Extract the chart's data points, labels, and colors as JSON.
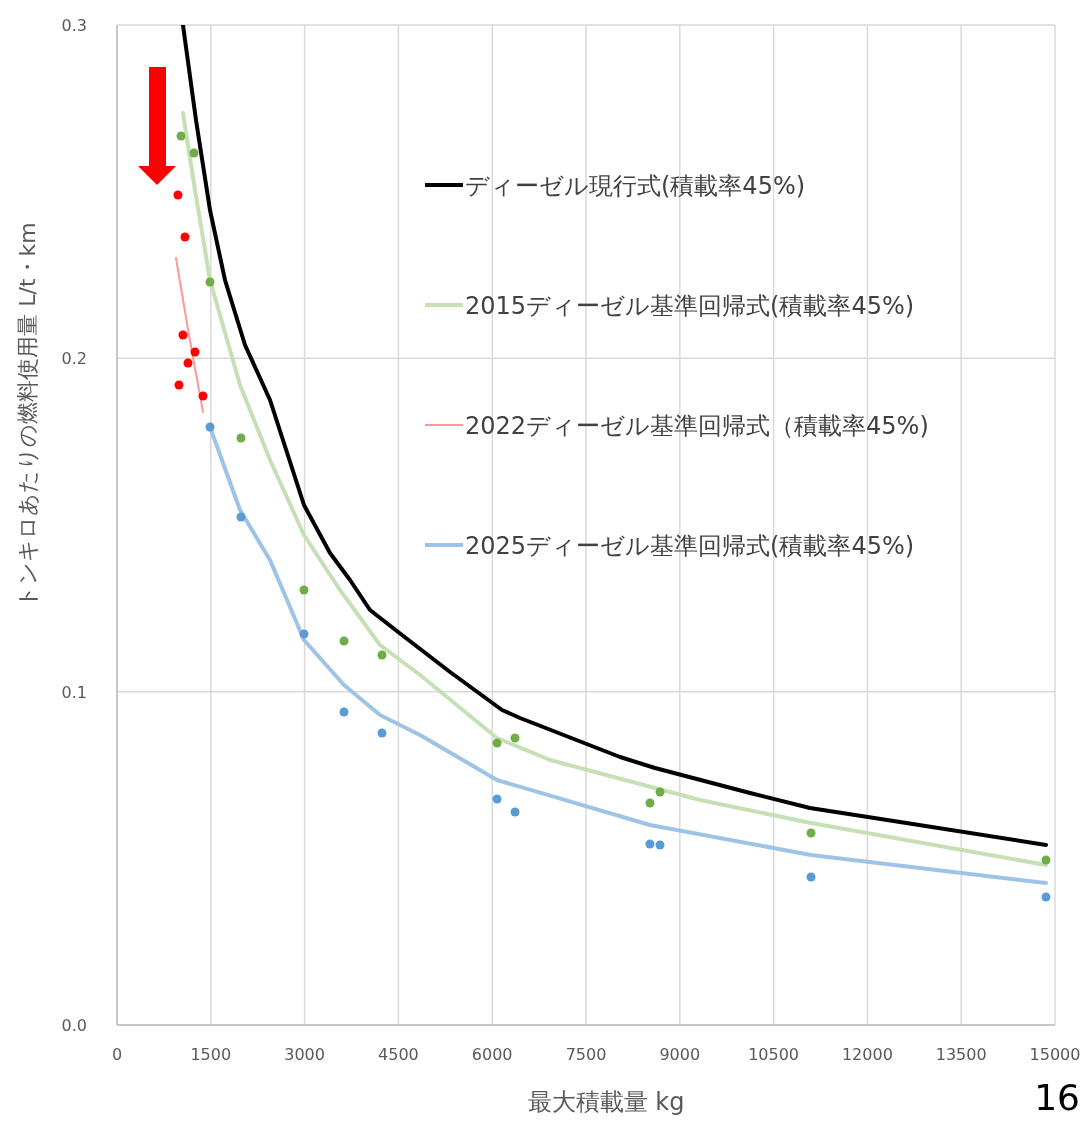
{
  "chart_data": {
    "type": "line",
    "xlabel": "最大積載量 kg",
    "ylabel": "トンキロあたりの燃料使用量  L/t・km",
    "xlim": [
      0,
      15000
    ],
    "ylim": [
      0,
      0.3
    ],
    "xticks": [
      0,
      1500,
      3000,
      4500,
      6000,
      7500,
      9000,
      10500,
      12000,
      13500,
      15000
    ],
    "yticks": [
      {
        "value": 0,
        "label": "0.0"
      },
      {
        "value": 0.1,
        "label": "0.1"
      },
      {
        "value": 0.2,
        "label": "0.2"
      },
      {
        "value": 0.3,
        "label": "0.3"
      }
    ],
    "grid": true,
    "legend": "right",
    "marker": "none",
    "series": [
      {
        "name": "ディーゼル現行式(積載率45%)",
        "color": "#000000",
        "x": [
          1055,
          1263,
          1487,
          1727,
          2047,
          2447,
          2990,
          3406,
          3726,
          4046,
          4495,
          5326,
          6157,
          6445,
          8044,
          8604,
          10123,
          11082,
          12521,
          14856
        ],
        "values": [
          0.3,
          0.2715,
          0.2445,
          0.2235,
          0.204,
          0.1875,
          0.156,
          0.1416,
          0.1335,
          0.1245,
          0.1179,
          0.1059,
          0.0945,
          0.0921,
          0.0804,
          0.0771,
          0.0696,
          0.0651,
          0.0609,
          0.054
        ]
      },
      {
        "name": "2015ディーゼル基準回帰式(積載率45%)",
        "color": "#c5e0b4",
        "x": [
          1055,
          1247,
          1487,
          1967,
          2447,
          2990,
          3566,
          4206,
          4846,
          6077,
          6925,
          9323,
          11098,
          14856
        ],
        "values": [
          0.2736,
          0.2505,
          0.2235,
          0.192,
          0.1695,
          0.147,
          0.1305,
          0.114,
          0.105,
          0.0861,
          0.0795,
          0.0675,
          0.0606,
          0.048
        ]
      },
      {
        "name": "2022ディーゼル基準回帰式（積載率45%)",
        "color": "#ff9999",
        "x": [
          943,
          1151,
          1375
        ],
        "values": [
          0.2301,
          0.207,
          0.1839
        ]
      },
      {
        "name": "2025ディーゼル基準回帰式(積載率45%)",
        "color": "#9dc3e6",
        "x": [
          1487,
          1967,
          2447,
          2990,
          3630,
          4206,
          4846,
          6077,
          8523,
          11098,
          14856
        ],
        "values": [
          0.1794,
          0.1545,
          0.1395,
          0.1155,
          0.102,
          0.093,
          0.087,
          0.0735,
          0.06,
          0.051,
          0.0426
        ]
      },
      {
        "type": "scatter",
        "marker": "circle",
        "color": "#70ad47",
        "x": [
          1023,
          1231,
          1487,
          1983,
          2990,
          3630,
          4238,
          6077,
          6365,
          8523,
          8683,
          11098,
          14856
        ],
        "values": [
          0.2667,
          0.2616,
          0.2229,
          0.1761,
          0.1305,
          0.1152,
          0.111,
          0.0846,
          0.0861,
          0.0666,
          0.0699,
          0.0576,
          0.0495
        ]
      },
      {
        "type": "scatter",
        "marker": "circle",
        "color": "#5b9bd5",
        "x": [
          1487,
          1983,
          2990,
          3630,
          4238,
          6077,
          6365,
          8523,
          8683,
          11098,
          14856
        ],
        "values": [
          0.1794,
          0.1524,
          0.1173,
          0.0939,
          0.0876,
          0.0678,
          0.0639,
          0.0543,
          0.054,
          0.0444,
          0.0384
        ]
      },
      {
        "type": "scatter",
        "marker": "circle",
        "color": "#ff0000",
        "x": [
          975,
          1087,
          1055,
          1247,
          1135,
          991,
          1375
        ],
        "values": [
          0.249,
          0.2364,
          0.207,
          0.2019,
          0.1986,
          0.192,
          0.1887
        ]
      }
    ],
    "annotations": [
      "16"
    ]
  }
}
